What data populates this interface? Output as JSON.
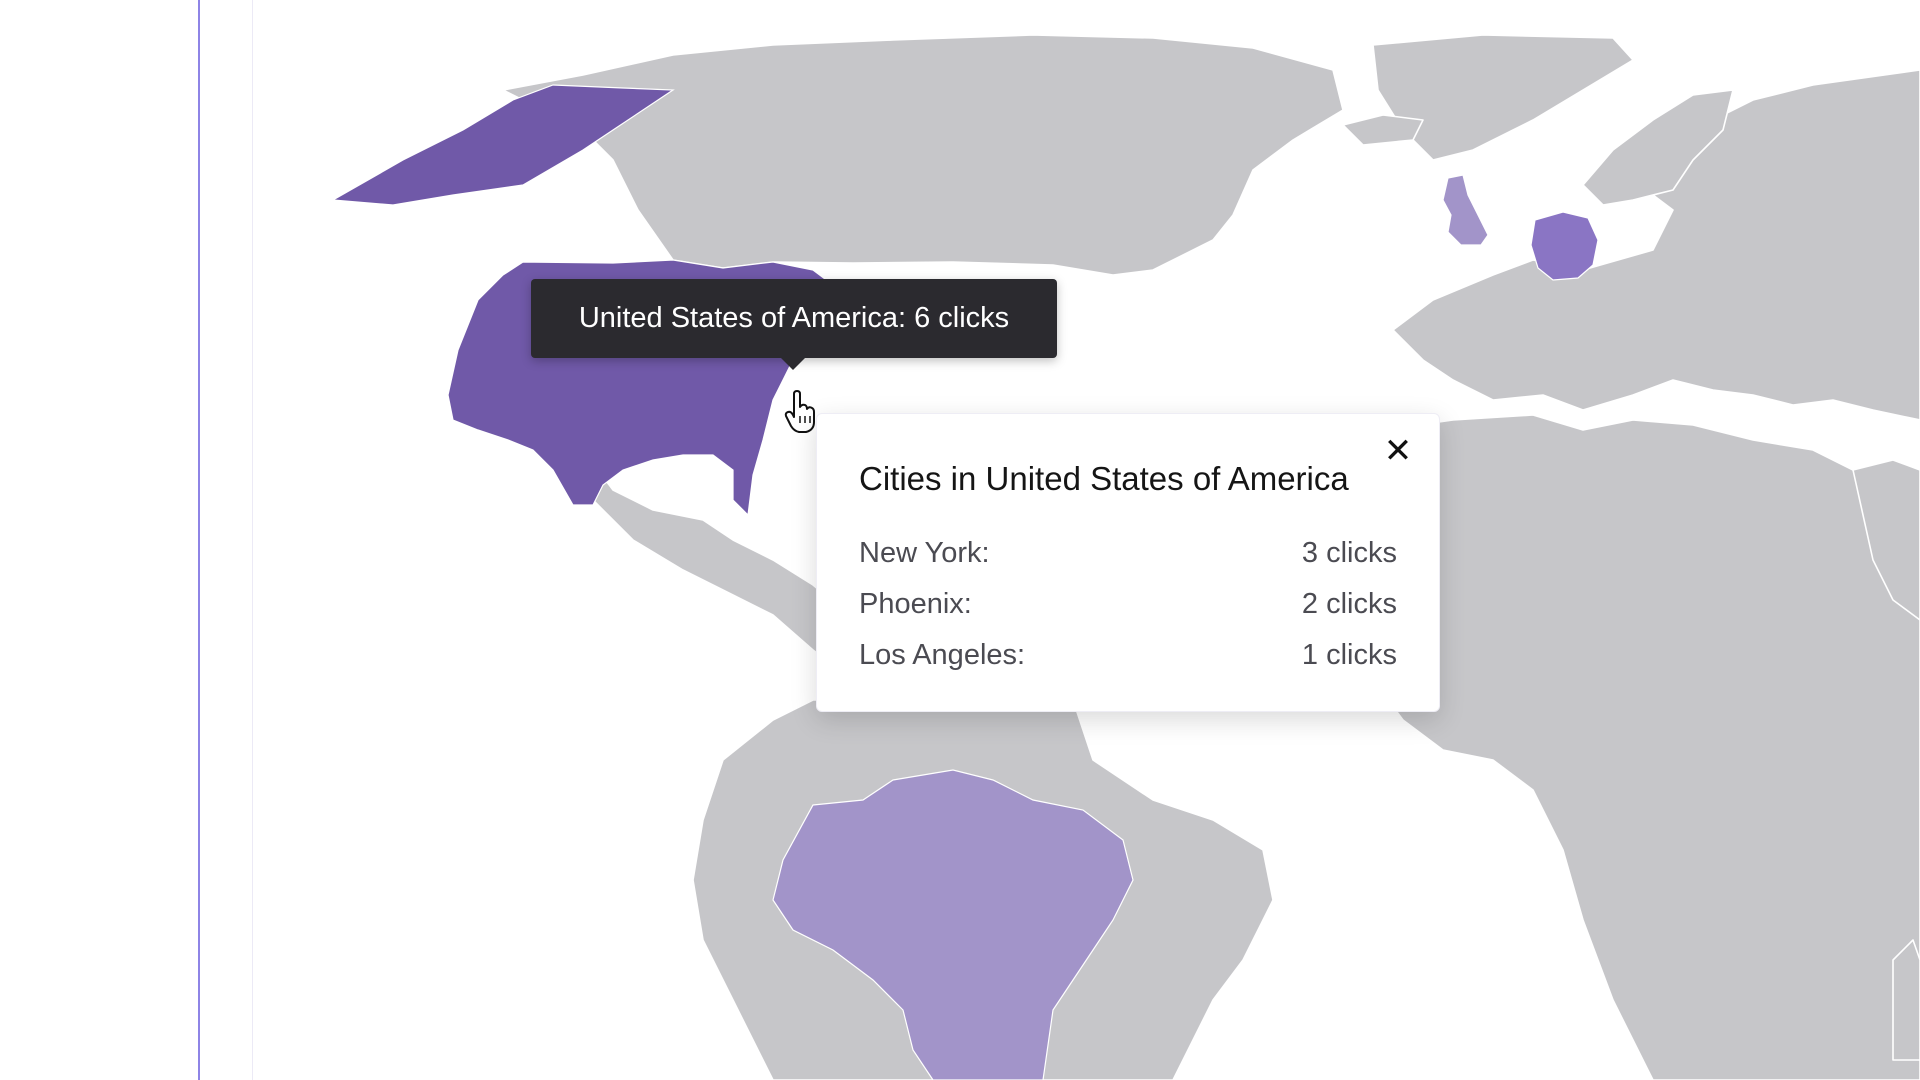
{
  "tooltip": {
    "text": "United States of America: 6 clicks"
  },
  "popup": {
    "title": "Cities in United States of America",
    "close_icon": "close-icon",
    "cities": [
      {
        "name": "New York:",
        "clicks": "3 clicks"
      },
      {
        "name": "Phoenix:",
        "clicks": "2 clicks"
      },
      {
        "name": "Los Angeles:",
        "clicks": "1 clicks"
      }
    ]
  },
  "map": {
    "base_color": "#c6c6c9",
    "highlighted": [
      {
        "country": "United States of America",
        "clicks": 6,
        "color": "#7059a8"
      },
      {
        "country": "Germany",
        "color": "#8a75c4"
      },
      {
        "country": "United Kingdom",
        "color": "#a294c9"
      },
      {
        "country": "Brazil",
        "color": "#a294c9"
      }
    ]
  },
  "cursor_icon": "hand-pointer-icon"
}
